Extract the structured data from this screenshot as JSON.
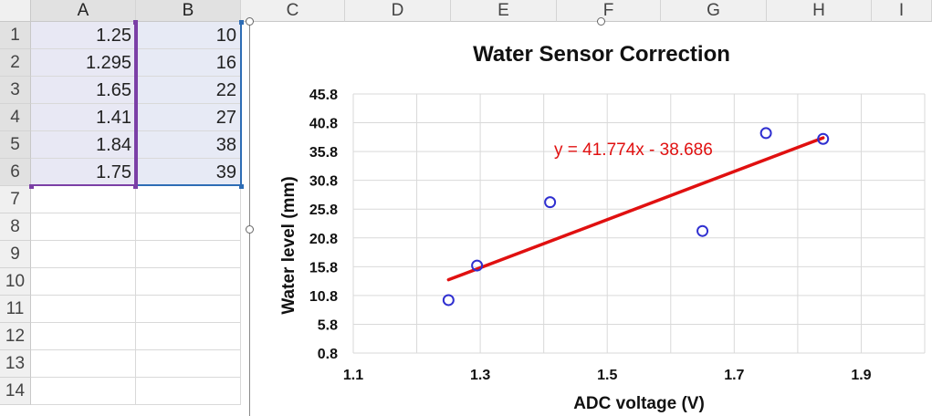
{
  "sheet": {
    "columns": [
      "A",
      "B",
      "C",
      "D",
      "E",
      "F",
      "G",
      "H",
      "I"
    ],
    "rows": [
      "1",
      "2",
      "3",
      "4",
      "5",
      "6",
      "7",
      "8",
      "9",
      "10",
      "11",
      "12",
      "13",
      "14"
    ],
    "col_a_values": [
      "1.25",
      "1.295",
      "1.65",
      "1.41",
      "1.84",
      "1.75"
    ],
    "col_b_values": [
      "10",
      "16",
      "22",
      "27",
      "38",
      "39"
    ]
  },
  "colors": {
    "marker": "#2f2fd0",
    "trendline": "#e01010",
    "equation": "#e01010",
    "grid": "#d9d9d9",
    "range_a": "#7b3fa6",
    "range_b": "#2e6db5"
  },
  "chart_data": {
    "type": "scatter",
    "title": "Water Sensor Correction",
    "xlabel": "ADC voltage (V)",
    "ylabel": "Water level (mm)",
    "xlim": [
      1.1,
      2.0
    ],
    "ylim": [
      0.8,
      45.8
    ],
    "x_ticks": [
      1.1,
      1.3,
      1.5,
      1.7,
      1.9
    ],
    "x_tick_labels": [
      "1.1",
      "1.3",
      "1.5",
      "1.7",
      "1.9"
    ],
    "y_ticks": [
      0.8,
      5.8,
      10.8,
      15.8,
      20.8,
      25.8,
      30.8,
      35.8,
      40.8,
      45.8
    ],
    "y_tick_labels": [
      "0.8",
      "5.8",
      "10.8",
      "15.8",
      "20.8",
      "25.8",
      "30.8",
      "35.8",
      "40.8",
      "45.8"
    ],
    "x_gridlines": [
      1.1,
      1.2,
      1.3,
      1.4,
      1.5,
      1.6,
      1.7,
      1.8,
      1.9,
      2.0
    ],
    "grid": true,
    "legend": "none",
    "series": [
      {
        "x": [
          1.25,
          1.295,
          1.65,
          1.41,
          1.84,
          1.75
        ],
        "y": [
          10,
          16,
          22,
          27,
          38,
          39
        ]
      }
    ],
    "trendline": {
      "slope": 41.774,
      "intercept": -38.686,
      "x_range": [
        1.25,
        1.84
      ]
    },
    "equation_label": "y = 41.774x - 38.686"
  }
}
